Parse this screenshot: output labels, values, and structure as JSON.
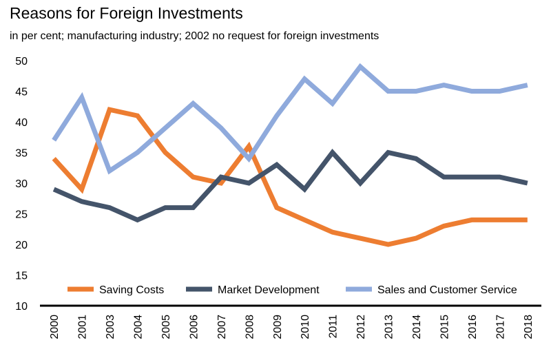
{
  "chart_data": {
    "type": "line",
    "title": "Reasons for Foreign Investments",
    "subtitle": "in per cent; manufacturing industry; 2002 no request for foreign investments",
    "xlabel": "",
    "ylabel": "",
    "categories": [
      "2000",
      "2001",
      "2003",
      "2004",
      "2005",
      "2006",
      "2007",
      "2008",
      "2009",
      "2010",
      "2011",
      "2012",
      "2013",
      "2014",
      "2015",
      "2016",
      "2017",
      "2018"
    ],
    "ylim": [
      10,
      50
    ],
    "yticks": [
      10,
      15,
      20,
      25,
      30,
      35,
      40,
      45,
      50
    ],
    "grid": false,
    "legend_position": "bottom-inside",
    "series": [
      {
        "name": "Saving Costs",
        "color": "#ED7D31",
        "values": [
          34,
          29,
          42,
          41,
          35,
          31,
          30,
          36,
          26,
          24,
          22,
          21,
          20,
          21,
          23,
          24,
          24,
          24
        ]
      },
      {
        "name": "Market Development",
        "color": "#44546A",
        "values": [
          29,
          27,
          26,
          24,
          26,
          26,
          31,
          30,
          33,
          29,
          35,
          30,
          35,
          34,
          31,
          31,
          31,
          30
        ]
      },
      {
        "name": "Sales and Customer Service",
        "color": "#8FAADC",
        "values": [
          37,
          44,
          32,
          35,
          39,
          43,
          39,
          34,
          41,
          47,
          43,
          49,
          45,
          45,
          46,
          45,
          45,
          46
        ]
      }
    ]
  }
}
